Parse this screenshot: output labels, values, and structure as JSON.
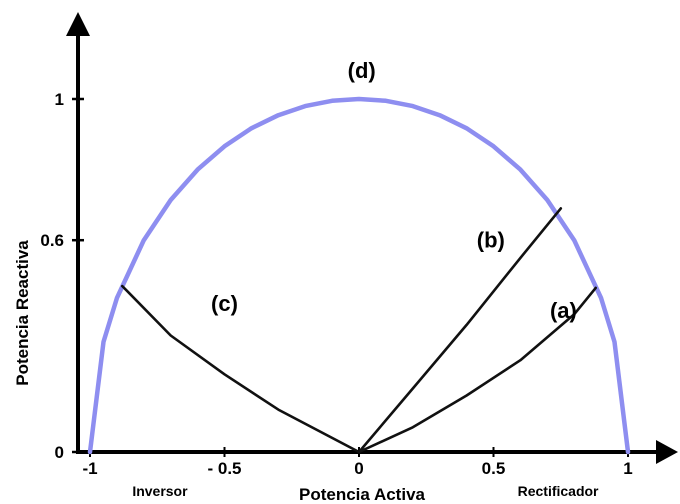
{
  "chart_data": {
    "type": "line",
    "xlabel": "Potencia Activa",
    "ylabel": "Potencia Reactiva",
    "xlim": [
      -1,
      1
    ],
    "ylim": [
      0,
      1
    ],
    "x_ticks": [
      {
        "value": -1,
        "label": "-1"
      },
      {
        "value": -0.5,
        "label": "- 0.5"
      },
      {
        "value": 0,
        "label": "0"
      },
      {
        "value": 0.5,
        "label": "0.5"
      },
      {
        "value": 1,
        "label": "1"
      }
    ],
    "y_ticks": [
      {
        "value": 0,
        "label": "0"
      },
      {
        "value": 0.6,
        "label": "0.6"
      },
      {
        "value": 1,
        "label": "1"
      }
    ],
    "region_labels": [
      {
        "text": "Inversor",
        "x": -0.74
      },
      {
        "text": "Rectificador",
        "x": 0.74
      }
    ],
    "grid": false,
    "colors": {
      "circle": "#8e8ef0",
      "curves": "#111111",
      "axes": "#000000"
    },
    "series": [
      {
        "name": "(d)",
        "label_point": {
          "x": 0.01,
          "y": 1.06
        },
        "x": [
          -1,
          -0.95,
          -0.9,
          -0.8,
          -0.7,
          -0.6,
          -0.5,
          -0.4,
          -0.3,
          -0.2,
          -0.1,
          0,
          0.1,
          0.2,
          0.3,
          0.4,
          0.5,
          0.6,
          0.7,
          0.8,
          0.9,
          0.95,
          1
        ],
        "y": [
          0,
          0.312,
          0.436,
          0.6,
          0.714,
          0.8,
          0.866,
          0.917,
          0.954,
          0.98,
          0.995,
          1,
          0.995,
          0.98,
          0.954,
          0.917,
          0.866,
          0.8,
          0.714,
          0.6,
          0.436,
          0.312,
          0
        ]
      },
      {
        "name": "(a)",
        "label_point": {
          "x": 0.76,
          "y": 0.38
        },
        "x": [
          0,
          0.2,
          0.4,
          0.6,
          0.8,
          0.88
        ],
        "y": [
          0,
          0.07,
          0.16,
          0.26,
          0.39,
          0.465
        ]
      },
      {
        "name": "(b)",
        "label_point": {
          "x": 0.49,
          "y": 0.58
        },
        "x": [
          0,
          0.2,
          0.4,
          0.6,
          0.75
        ],
        "y": [
          0,
          0.18,
          0.36,
          0.55,
          0.69
        ]
      },
      {
        "name": "(c)",
        "label_point": {
          "x": -0.5,
          "y": 0.4
        },
        "x": [
          -0.88,
          -0.7,
          -0.5,
          -0.3,
          -0.1,
          0
        ],
        "y": [
          0.47,
          0.33,
          0.22,
          0.12,
          0.04,
          0
        ]
      }
    ]
  }
}
